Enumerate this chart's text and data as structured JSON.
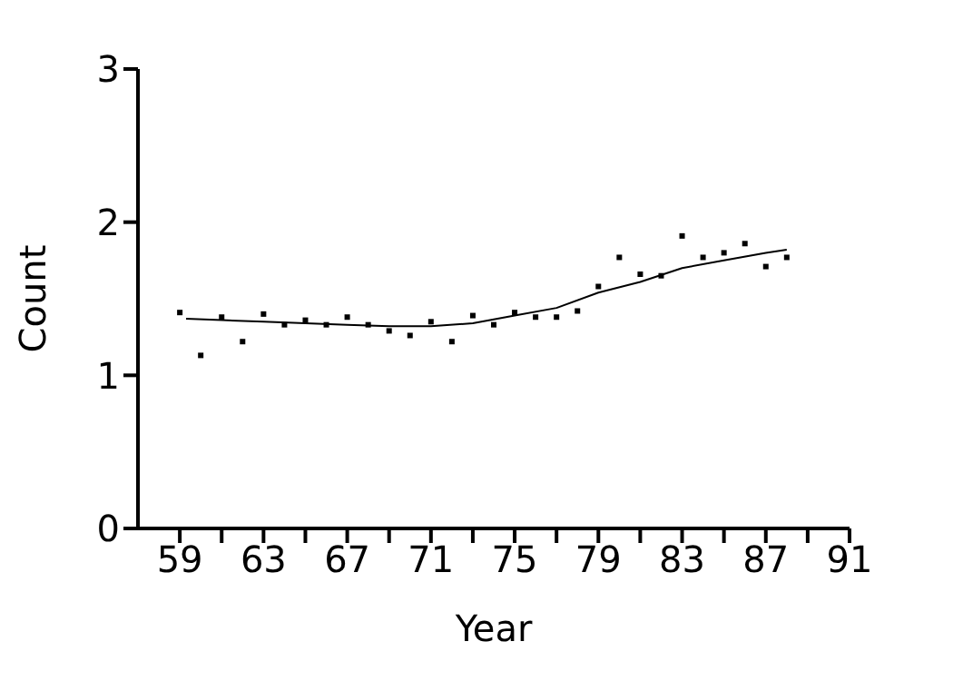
{
  "chart_data": {
    "type": "scatter",
    "xlabel": "Year",
    "ylabel": "Count",
    "xlim": [
      57,
      91
    ],
    "xticks": [
      59,
      {
        "value": 61,
        "label": null
      },
      63,
      {
        "value": 65,
        "label": null
      },
      67,
      {
        "value": 69,
        "label": null
      },
      71,
      {
        "value": 73,
        "label": null
      },
      75,
      {
        "value": 77,
        "label": null
      },
      79,
      {
        "value": 81,
        "label": null
      },
      83,
      {
        "value": 85,
        "label": null
      },
      87,
      {
        "value": 89,
        "label": null
      },
      91
    ],
    "ylim": [
      0,
      3
    ],
    "yticks": [
      0,
      1,
      2,
      3
    ],
    "grid": false,
    "series": [
      {
        "color": "#000000",
        "marker": "square",
        "x": [
          59,
          60,
          61,
          62,
          63,
          64,
          65,
          66,
          67,
          68,
          69,
          70,
          71,
          72,
          73,
          74,
          75,
          76,
          77,
          78,
          79,
          80,
          81,
          82,
          83,
          84,
          85,
          86,
          87,
          88
        ],
        "values": [
          1.41,
          1.13,
          1.38,
          1.22,
          1.4,
          1.33,
          1.36,
          1.33,
          1.38,
          1.33,
          1.29,
          1.26,
          1.35,
          1.22,
          1.39,
          1.33,
          1.41,
          1.38,
          1.38,
          1.42,
          1.58,
          1.77,
          1.66,
          1.65,
          1.91,
          1.77,
          1.8,
          1.86,
          1.71,
          1.77
        ]
      },
      {
        "type": "line",
        "color": "#000000",
        "marker": "none",
        "line_style": "solid",
        "x": [
          59.3,
          61,
          63,
          65,
          67,
          69,
          70,
          71,
          73,
          75,
          77,
          79,
          81,
          83,
          85,
          87,
          88
        ],
        "values": [
          1.37,
          1.36,
          1.35,
          1.34,
          1.33,
          1.32,
          1.32,
          1.32,
          1.34,
          1.39,
          1.44,
          1.54,
          1.61,
          1.7,
          1.75,
          1.8,
          1.82
        ]
      }
    ]
  }
}
